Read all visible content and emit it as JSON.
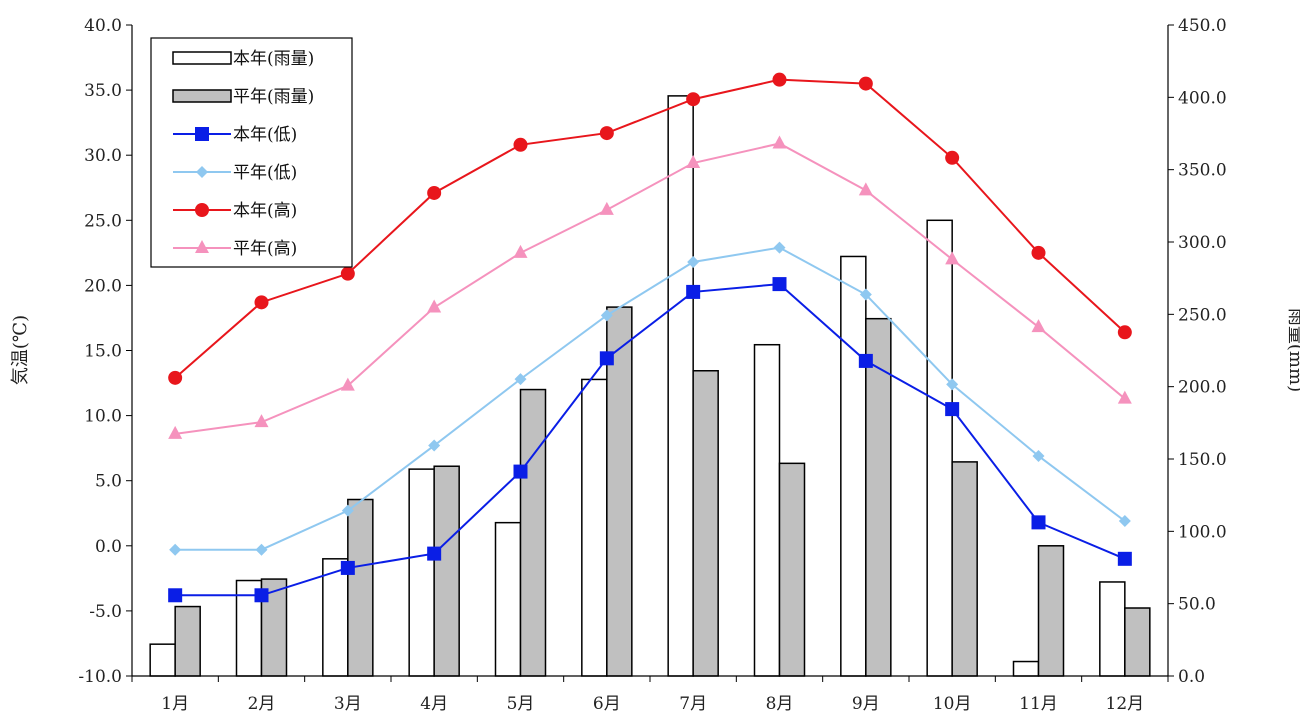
{
  "chart_data": {
    "type": "bar+line",
    "title": "",
    "categories": [
      "1月",
      "2月",
      "3月",
      "4月",
      "5月",
      "6月",
      "7月",
      "8月",
      "9月",
      "10月",
      "11月",
      "12月"
    ],
    "left_axis": {
      "label": "気温(℃)",
      "min": -10,
      "max": 40,
      "step": 5,
      "tick_labels": [
        "-10.0",
        "-5.0",
        "0.0",
        "5.0",
        "10.0",
        "15.0",
        "20.0",
        "25.0",
        "30.0",
        "35.0",
        "40.0"
      ]
    },
    "right_axis": {
      "label": "雨量(mm)",
      "min": 0,
      "max": 450,
      "step": 50,
      "tick_labels": [
        "0.0",
        "50.0",
        "100.0",
        "150.0",
        "200.0",
        "250.0",
        "300.0",
        "350.0",
        "400.0",
        "450.0"
      ]
    },
    "bar_series": [
      {
        "name": "本年(雨量)",
        "axis": "right",
        "color": "#ffffff",
        "stroke": "#000000",
        "values": [
          22,
          66,
          81,
          143,
          106,
          205,
          401,
          229,
          290,
          315,
          10,
          65
        ]
      },
      {
        "name": "平年(雨量)",
        "axis": "right",
        "color": "#c0c0c0",
        "stroke": "#000000",
        "values": [
          48,
          67,
          122,
          145,
          198,
          255,
          211,
          147,
          247,
          148,
          90,
          47
        ]
      }
    ],
    "line_series": [
      {
        "name": "本年(低)",
        "axis": "left",
        "color": "#0a1ee6",
        "marker": "square",
        "values": [
          -3.8,
          -3.8,
          -1.7,
          -0.6,
          5.7,
          14.4,
          19.5,
          20.1,
          14.2,
          10.5,
          1.8,
          -1.0
        ]
      },
      {
        "name": "平年(低)",
        "axis": "left",
        "color": "#8fc8f0",
        "marker": "diamond",
        "values": [
          -0.3,
          -0.3,
          2.7,
          7.7,
          12.8,
          17.7,
          21.8,
          22.9,
          19.3,
          12.4,
          6.9,
          1.9
        ]
      },
      {
        "name": "本年(高)",
        "axis": "left",
        "color": "#e8161c",
        "marker": "circle",
        "values": [
          12.9,
          18.7,
          20.9,
          27.1,
          30.8,
          31.7,
          34.3,
          35.8,
          35.5,
          29.8,
          22.5,
          16.4
        ]
      },
      {
        "name": "平年(高)",
        "axis": "left",
        "color": "#f592bd",
        "marker": "triangle",
        "values": [
          8.6,
          9.5,
          12.3,
          18.3,
          22.5,
          25.8,
          29.4,
          30.9,
          27.3,
          22.0,
          16.8,
          11.3
        ]
      }
    ],
    "legend": {
      "placement": "top-left",
      "entries": [
        "本年(雨量)",
        "平年(雨量)",
        "本年(低)",
        "平年(低)",
        "本年(高)",
        "平年(高)"
      ]
    },
    "grid": false
  }
}
